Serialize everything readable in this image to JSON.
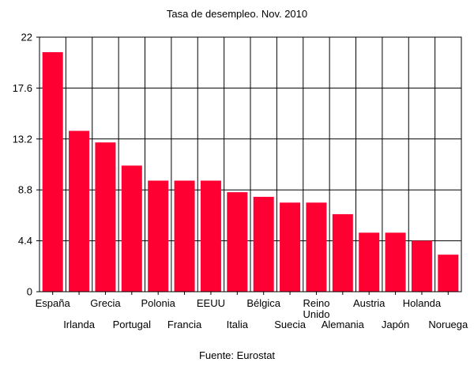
{
  "chart_data": {
    "type": "bar",
    "title": "Tasa de desempleo. Nov. 2010",
    "source": "Fuente: Eurostat",
    "xlabel": "",
    "ylabel": "",
    "ylim": [
      0,
      22
    ],
    "yticks": [
      "0",
      "4.4",
      "8.8",
      "13.2",
      "17.6",
      "22"
    ],
    "grid": true,
    "legend": "none",
    "bar_color": "#ff0033",
    "categories": [
      "España",
      "Irlanda",
      "Grecia",
      "Portugal",
      "Polonia",
      "Francia",
      "EEUU",
      "Italia",
      "Bélgica",
      "Suecia",
      "Reino Unido",
      "Alemania",
      "Austria",
      "Japón",
      "Holanda",
      "Noruega"
    ],
    "values": [
      20.7,
      13.9,
      12.9,
      10.9,
      9.6,
      9.6,
      9.6,
      8.6,
      8.2,
      7.7,
      7.7,
      6.7,
      5.1,
      5.1,
      4.4,
      3.2
    ]
  }
}
